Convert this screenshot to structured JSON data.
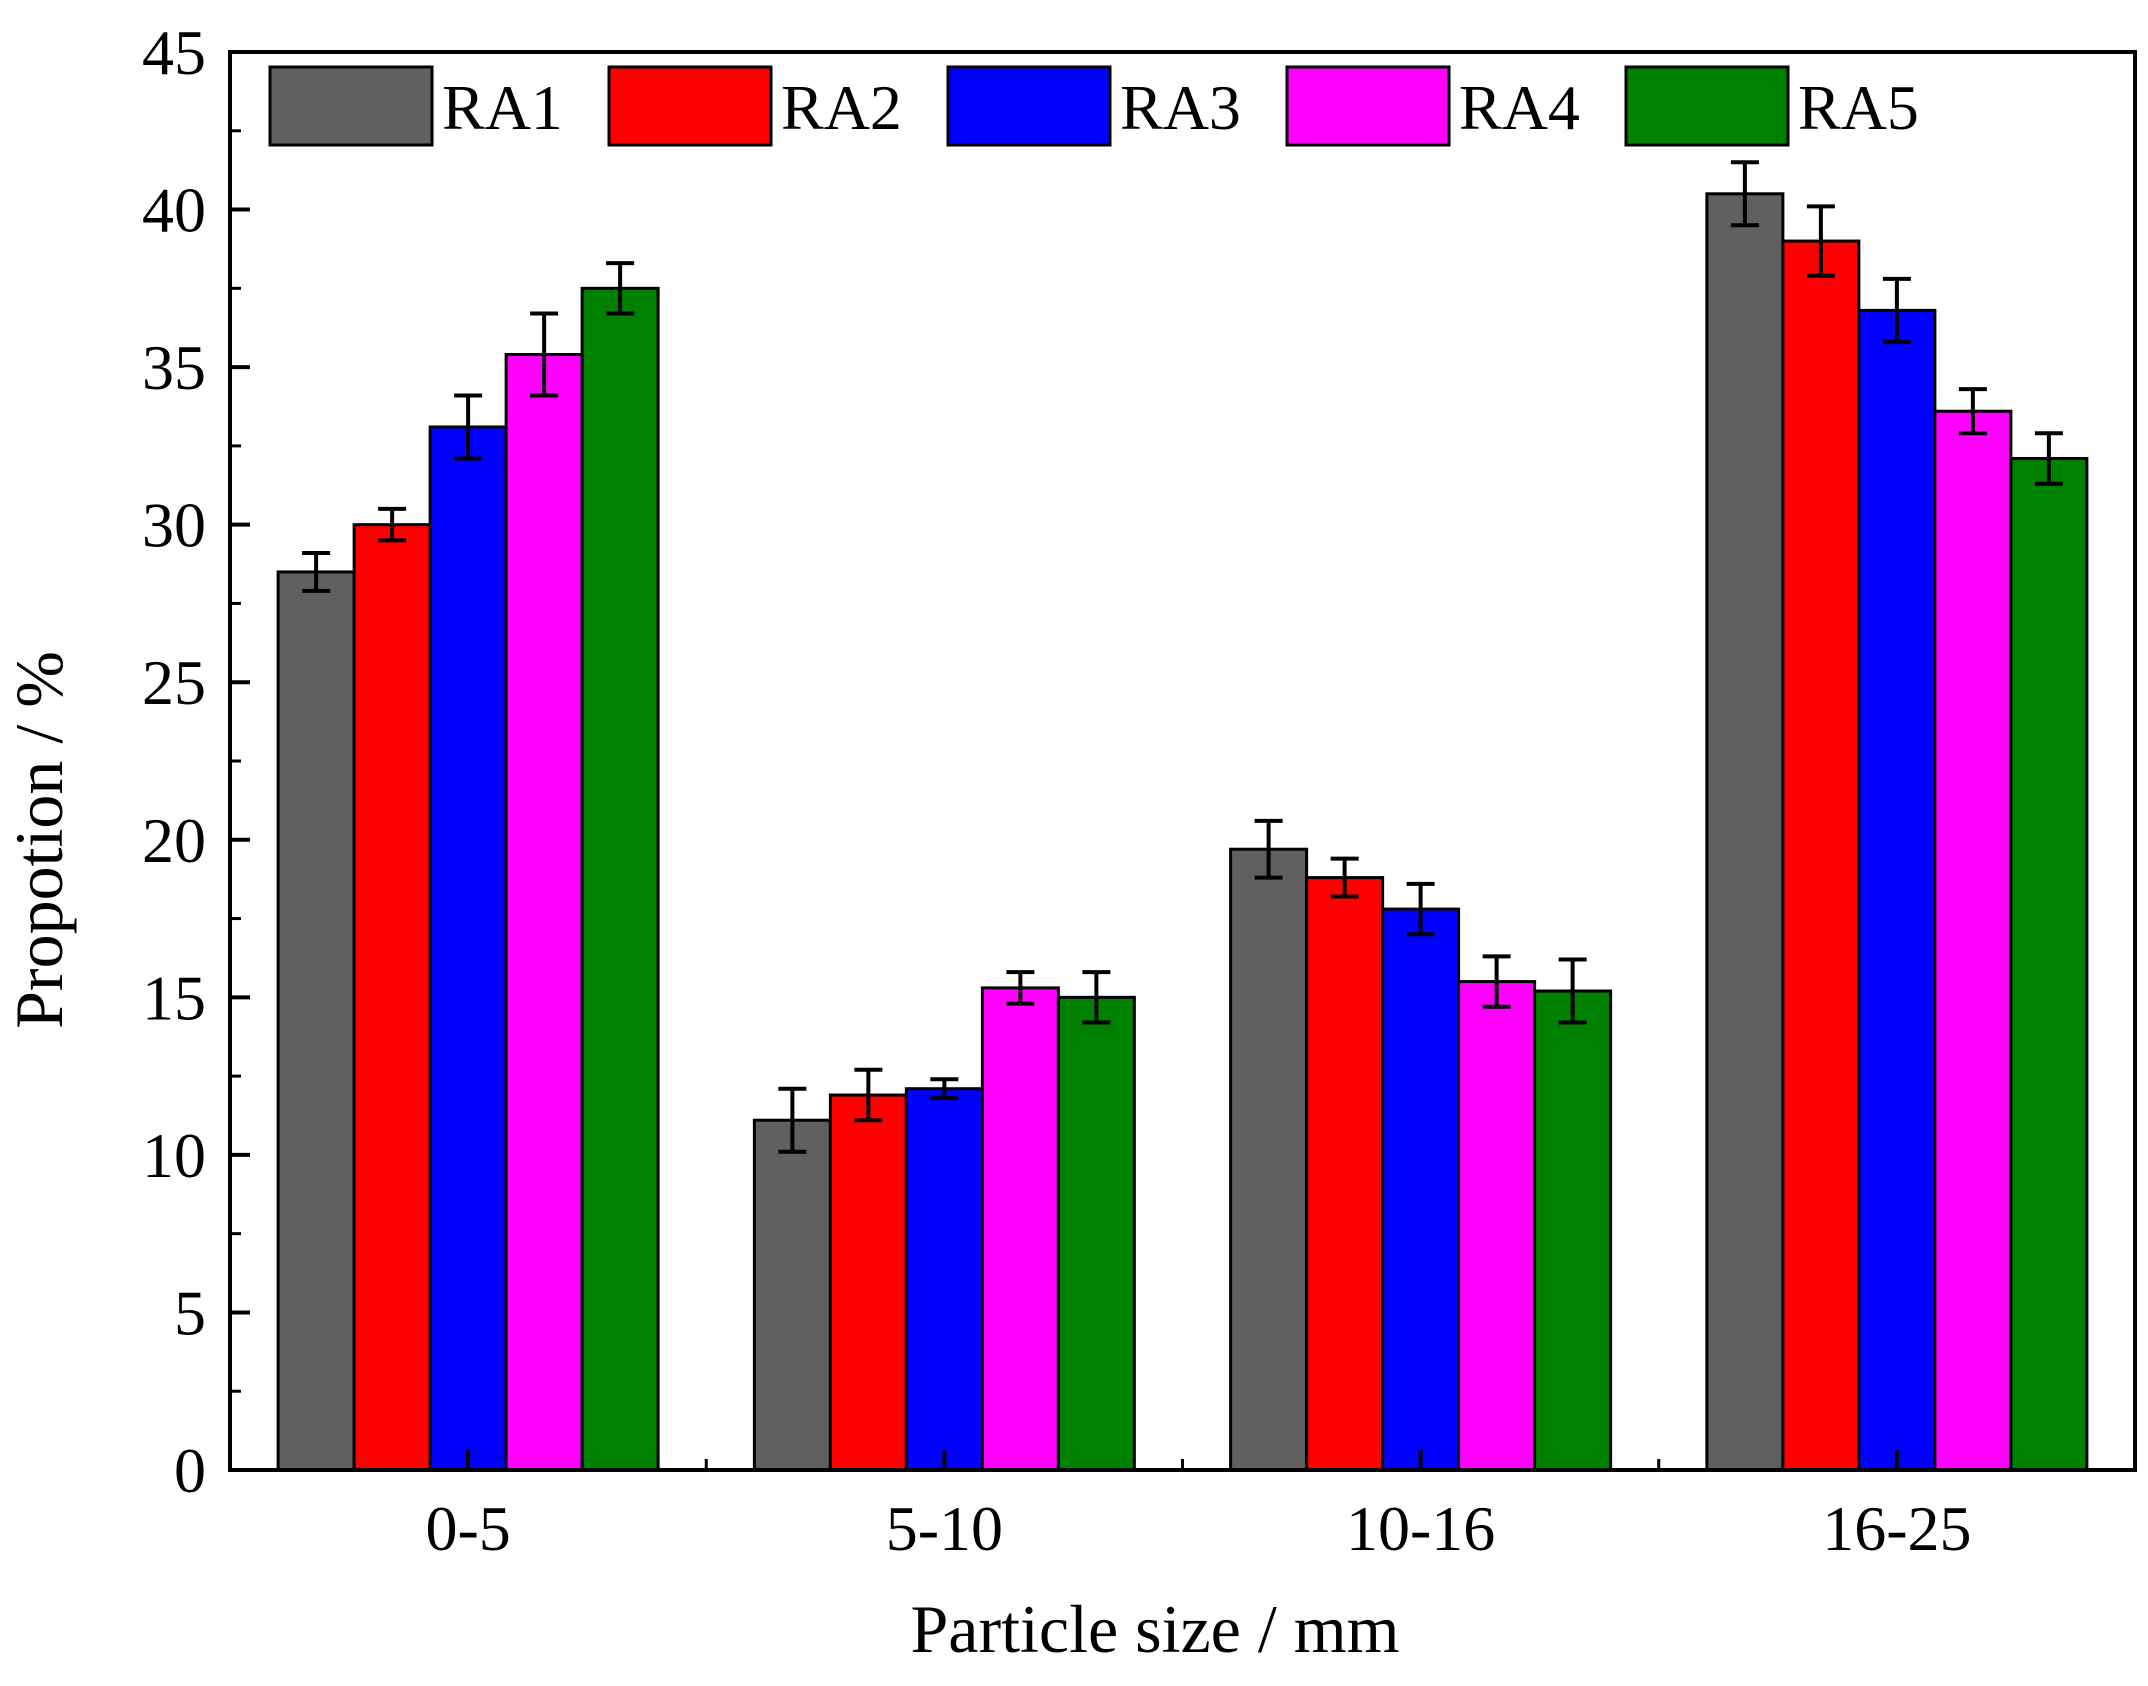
{
  "chart_data": {
    "type": "bar",
    "title": "",
    "xlabel": "Particle size / mm",
    "ylabel": "Propotion / %",
    "ylim": [
      0,
      45
    ],
    "yticks": [
      "0",
      "5",
      "10",
      "15",
      "20",
      "25",
      "30",
      "35",
      "40",
      "45"
    ],
    "grid": false,
    "legend_position": "top",
    "categories": [
      "0-5",
      "5-10",
      "10-16",
      "16-25"
    ],
    "series": [
      {
        "name": "RA1",
        "color": "#606060",
        "values": [
          28.5,
          11.1,
          19.7,
          40.5
        ],
        "errors": [
          0.6,
          1.0,
          0.9,
          1.0
        ]
      },
      {
        "name": "RA2",
        "color": "#ff0000",
        "values": [
          30.0,
          11.9,
          18.8,
          39.0
        ],
        "errors": [
          0.5,
          0.8,
          0.6,
          1.1
        ]
      },
      {
        "name": "RA3",
        "color": "#0000ff",
        "values": [
          33.1,
          12.1,
          17.8,
          36.8
        ],
        "errors": [
          1.0,
          0.3,
          0.8,
          1.0
        ]
      },
      {
        "name": "RA4",
        "color": "#ff00ff",
        "values": [
          35.4,
          15.3,
          15.5,
          33.6
        ],
        "errors": [
          1.3,
          0.5,
          0.8,
          0.7
        ]
      },
      {
        "name": "RA5",
        "color": "#008000",
        "values": [
          37.5,
          15.0,
          15.2,
          32.1
        ],
        "errors": [
          0.8,
          0.8,
          1.0,
          0.8
        ]
      }
    ]
  }
}
